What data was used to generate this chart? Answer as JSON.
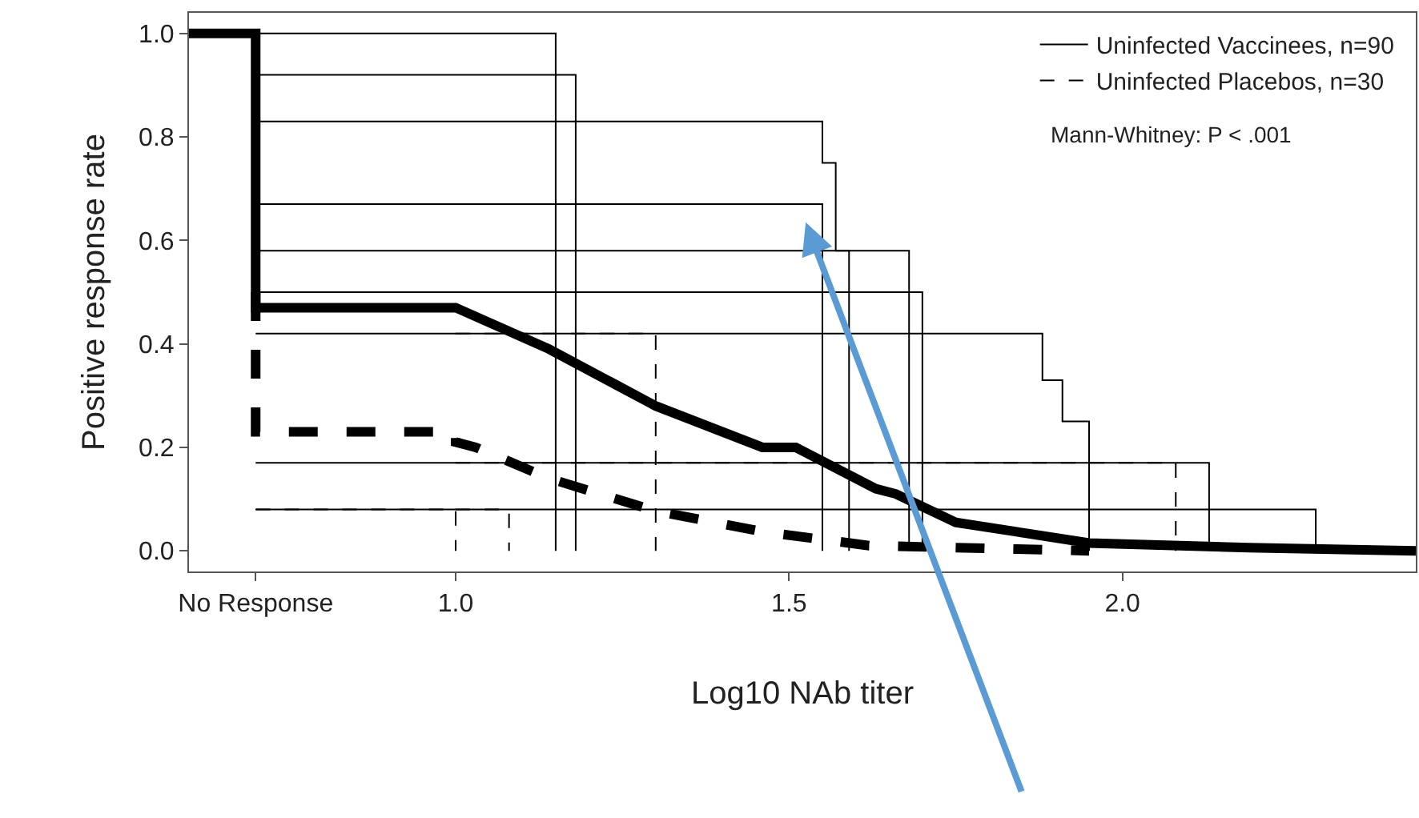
{
  "chart_data": {
    "type": "step",
    "xlabel": "Log10 NAb titer",
    "ylabel": "Positive response rate",
    "xlim": [
      0.6,
      2.44
    ],
    "ylim": [
      -0.04,
      1.04
    ],
    "xticks": [
      {
        "value": 0.7,
        "label": "No Response"
      },
      {
        "value": 1.0,
        "label": "1.0"
      },
      {
        "value": 1.5,
        "label": "1.5"
      },
      {
        "value": 2.0,
        "label": "2.0"
      }
    ],
    "yticks": [
      {
        "value": 0,
        "label": "0.0"
      },
      {
        "value": 0.2,
        "label": "0.2"
      },
      {
        "value": 0.4,
        "label": "0.4"
      },
      {
        "value": 0.6,
        "label": "0.6"
      },
      {
        "value": 0.8,
        "label": "0.8"
      },
      {
        "value": 1.0,
        "label": "1.0"
      }
    ],
    "legend": "top right",
    "marker": "none",
    "annotations": [
      "Mann-Whitney: P < .001"
    ],
    "series": [
      {
        "name": "Uninfected Vaccinees, n=90",
        "color": "#000000",
        "line_style": "solid",
        "x": [
          0.7,
          1.15
        ],
        "values": [
          1.0,
          0
        ]
      },
      {
        "color": "#000000",
        "line_style": "solid",
        "x": [
          0.7,
          1.18
        ],
        "values": [
          0.92,
          0
        ]
      },
      {
        "color": "#000000",
        "line_style": "solid",
        "x": [
          0.7,
          1.55,
          1.57,
          1.59
        ],
        "values": [
          0.83,
          0.75,
          0.58,
          0
        ]
      },
      {
        "color": "#000000",
        "line_style": "solid",
        "x": [
          0.7,
          1.55
        ],
        "values": [
          0.67,
          0
        ]
      },
      {
        "color": "#000000",
        "line_style": "solid",
        "x": [
          0.7,
          1.68
        ],
        "values": [
          0.58,
          0
        ]
      },
      {
        "color": "#000000",
        "line_style": "solid",
        "x": [
          0.7,
          1.7
        ],
        "values": [
          0.5,
          0
        ]
      },
      {
        "color": "#000000",
        "line_style": "solid",
        "x": [
          0.7,
          1.88,
          1.91,
          1.95
        ],
        "values": [
          0.42,
          0.33,
          0.25,
          0
        ]
      },
      {
        "color": "#000000",
        "line_style": "solid",
        "x": [
          0.7,
          2.13
        ],
        "values": [
          0.17,
          0
        ]
      },
      {
        "color": "#000000",
        "line_style": "solid",
        "x": [
          0.7,
          2.29
        ],
        "values": [
          0.08,
          0
        ]
      },
      {
        "name": "Uninfected Placebos, n=30",
        "color": "#000000",
        "line_style": "dashed",
        "x": [
          0.7,
          1.0
        ],
        "values": [
          0.08,
          0
        ]
      },
      {
        "color": "#000000",
        "line_style": "dashed",
        "x": [
          1.0,
          1.08
        ],
        "values": [
          0.08,
          0
        ]
      },
      {
        "color": "#000000",
        "line_style": "dashed",
        "x": [
          1.0,
          1.3
        ],
        "values": [
          0.42,
          0
        ]
      },
      {
        "color": "#000000",
        "line_style": "dashed",
        "x": [
          1.0,
          2.08
        ],
        "values": [
          0.17,
          0
        ]
      },
      {
        "type": "line",
        "color": "#000000",
        "line_style": "solid",
        "x": [
          0.6,
          0.7,
          0.7,
          1.0,
          1.14,
          1.3,
          1.46,
          1.51,
          1.63,
          1.66,
          1.75,
          1.95,
          2.19,
          2.44
        ],
        "values": [
          1.0,
          1.0,
          0.47,
          0.47,
          0.39,
          0.28,
          0.2,
          0.2,
          0.12,
          0.11,
          0.055,
          0.015,
          0.006,
          0
        ]
      },
      {
        "type": "line",
        "color": "#000000",
        "line_style": "dashed",
        "x": [
          0.7,
          0.7,
          1.0,
          1.0,
          1.03,
          1.14,
          1.3,
          1.46,
          1.62,
          1.95
        ],
        "values": [
          0.5,
          0.23,
          0.23,
          0.21,
          0.2,
          0.14,
          0.077,
          0.037,
          0.01,
          0
        ]
      }
    ]
  }
}
